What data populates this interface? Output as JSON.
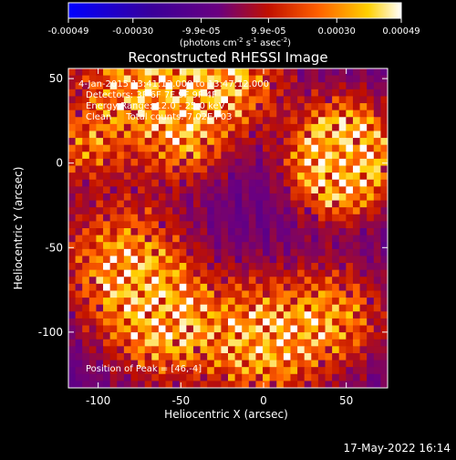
{
  "chart_data": {
    "type": "heatmap",
    "title": "Reconstructed RHESSI Image",
    "xlabel": "Heliocentric X (arcsec)",
    "ylabel": "Heliocentric Y (arcsec)",
    "xlim": [
      -118,
      75
    ],
    "ylim": [
      -133,
      56
    ],
    "x_ticks": [
      -100,
      -50,
      0,
      50
    ],
    "y_ticks": [
      50,
      0,
      -50,
      -100
    ],
    "colorbar": {
      "min": -0.00049,
      "max": 0.00049,
      "tick_values": [
        -0.00049,
        -0.0003,
        -9.9e-05,
        9.9e-05,
        0.0003,
        0.00049
      ],
      "tick_labels": [
        "-0.00049",
        "-0.00030",
        "-9.9e-05",
        "9.9e-05",
        "0.00030",
        "0.00049"
      ],
      "unit_label": [
        "(photons cm",
        "-2",
        " s",
        "-1",
        " asec",
        "-2",
        ")"
      ],
      "colors": [
        "#0000ff",
        "#3a009a",
        "#6a0080",
        "#c01000",
        "#ff6000",
        "#ffd000",
        "#ffffff"
      ]
    },
    "annotations": [
      "4-Jan-2015 13:41:12.000 to 13:47:12.000",
      "Detectors: 3F 6F 7F 9F 9F 4F",
      "Energy Range: 12.0 - 25.0 keV",
      "Clean     Total counts: 7.02E+03"
    ],
    "peak_label": "Position of Peak = [46,-4]",
    "peak": [
      46,
      -4
    ],
    "grid": false
  },
  "footer": {
    "timestamp": "17-May-2022 16:14"
  }
}
